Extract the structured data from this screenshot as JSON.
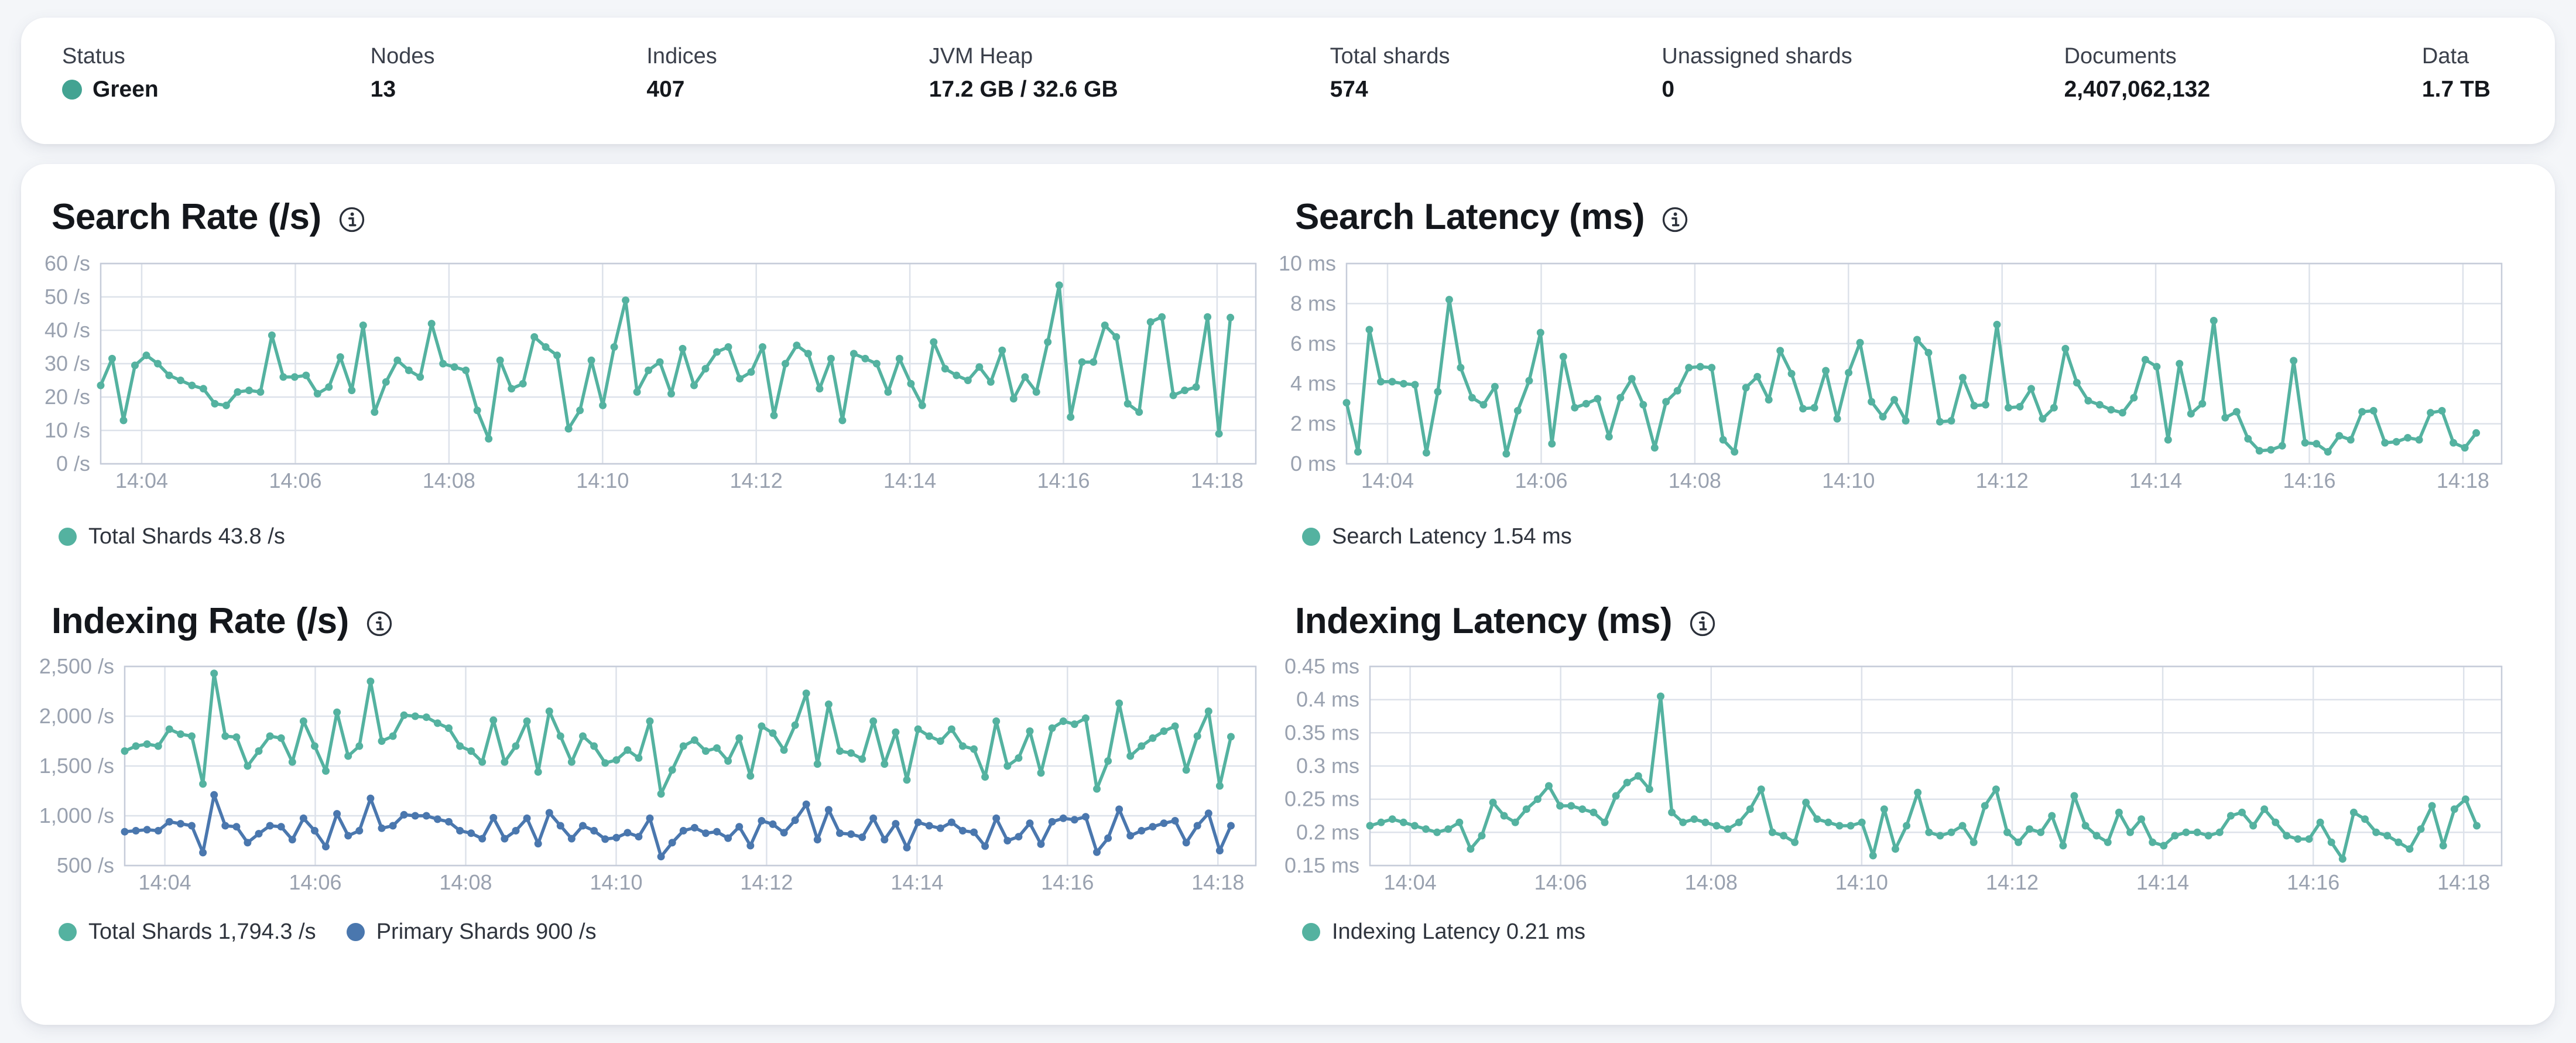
{
  "status_bar": {
    "items": [
      {
        "label": "Status",
        "value": "Green",
        "dot_color": "#43a392"
      },
      {
        "label": "Nodes",
        "value": "13"
      },
      {
        "label": "Indices",
        "value": "407"
      },
      {
        "label": "JVM Heap",
        "value": "17.2 GB / 32.6 GB"
      },
      {
        "label": "Total shards",
        "value": "574"
      },
      {
        "label": "Unassigned shards",
        "value": "0"
      },
      {
        "label": "Documents",
        "value": "2,407,062,132"
      },
      {
        "label": "Data",
        "value": "1.7 TB"
      }
    ]
  },
  "colors": {
    "teal": "#54b2a0",
    "blue": "#4a77ae",
    "grid": "#dde2ea",
    "plot_border": "#c6ccd9",
    "tick_text": "#99a1af"
  },
  "chart_data": [
    {
      "type": "line",
      "title": "Search Rate (/s)",
      "info_icon": "info-in-circle",
      "legend_position": "bottom",
      "grid": true,
      "ylim": [
        0,
        60
      ],
      "y_ticks": [
        0,
        10,
        20,
        30,
        40,
        50,
        60
      ],
      "y_tick_labels": [
        "0 /s",
        "10 /s",
        "20 /s",
        "30 /s",
        "40 /s",
        "50 /s",
        "60 /s"
      ],
      "x_tick_labels": [
        "14:04",
        "14:06",
        "14:08",
        "14:10",
        "14:12",
        "14:14",
        "14:16",
        "14:18"
      ],
      "series": [
        {
          "name": "Total Shards",
          "legend_label": "Total Shards 43.8 /s",
          "current_value": 43.8,
          "unit": "/s",
          "color": "#54b2a0",
          "values": [
            23.5,
            31.5,
            13,
            29.5,
            32.5,
            30,
            26.5,
            25,
            23.5,
            22.5,
            18,
            17.5,
            21.5,
            22,
            21.5,
            38.5,
            26,
            26,
            26.5,
            21,
            23,
            32,
            22,
            41.5,
            15.5,
            24.5,
            31,
            28,
            26,
            42,
            30,
            29,
            28,
            16,
            7.5,
            31,
            22.5,
            24,
            38,
            35,
            32.5,
            10.5,
            16,
            31,
            17.5,
            35,
            49,
            21.5,
            28,
            30.5,
            21,
            34.5,
            23.5,
            28.5,
            33.5,
            35,
            25.5,
            27.5,
            35,
            14.5,
            30,
            35.5,
            33,
            22.5,
            31.5,
            13,
            33,
            31.5,
            30,
            21.5,
            31.5,
            24,
            17.5,
            36.5,
            28.5,
            26.5,
            25,
            29,
            24.5,
            34,
            19.5,
            26,
            21.5,
            36.5,
            53.5,
            14,
            30.5,
            30.5,
            41.5,
            38,
            18,
            15.5,
            42.5,
            44,
            20.5,
            22,
            23,
            44,
            9,
            43.8
          ]
        }
      ]
    },
    {
      "type": "line",
      "title": "Search Latency (ms)",
      "info_icon": "info-in-circle",
      "legend_position": "bottom",
      "grid": true,
      "ylim": [
        0,
        10
      ],
      "y_ticks": [
        0,
        2,
        4,
        6,
        8,
        10
      ],
      "y_tick_labels": [
        "0 ms",
        "2 ms",
        "4 ms",
        "6 ms",
        "8 ms",
        "10 ms"
      ],
      "x_tick_labels": [
        "14:04",
        "14:06",
        "14:08",
        "14:10",
        "14:12",
        "14:14",
        "14:16",
        "14:18"
      ],
      "series": [
        {
          "name": "Search Latency",
          "legend_label": "Search Latency 1.54 ms",
          "current_value": 1.54,
          "unit": "ms",
          "color": "#54b2a0",
          "values": [
            3.05,
            0.6,
            6.7,
            4.1,
            4.1,
            4.0,
            3.95,
            0.55,
            3.6,
            8.2,
            4.8,
            3.3,
            2.95,
            3.85,
            0.5,
            2.65,
            4.15,
            6.55,
            1.0,
            5.35,
            2.8,
            3.0,
            3.25,
            1.35,
            3.3,
            4.25,
            2.95,
            0.8,
            3.1,
            3.65,
            4.8,
            4.85,
            4.8,
            1.2,
            0.6,
            3.8,
            4.35,
            3.2,
            5.65,
            4.5,
            2.75,
            2.8,
            4.65,
            2.25,
            4.55,
            6.05,
            3.1,
            2.35,
            3.2,
            2.15,
            6.2,
            5.55,
            2.1,
            2.15,
            4.3,
            2.9,
            2.95,
            6.95,
            2.8,
            2.85,
            3.75,
            2.25,
            2.8,
            5.75,
            4.05,
            3.15,
            2.95,
            2.7,
            2.55,
            3.3,
            5.2,
            4.85,
            1.2,
            5.0,
            2.5,
            3.0,
            7.15,
            2.3,
            2.6,
            1.25,
            0.65,
            0.7,
            0.9,
            5.15,
            1.05,
            1.0,
            0.6,
            1.4,
            1.2,
            2.6,
            2.65,
            1.05,
            1.1,
            1.3,
            1.2,
            2.55,
            2.65,
            1.05,
            0.8,
            1.54
          ]
        }
      ]
    },
    {
      "type": "line",
      "title": "Indexing Rate (/s)",
      "info_icon": "info-in-circle",
      "legend_position": "bottom",
      "grid": true,
      "ylim": [
        500,
        2500
      ],
      "y_ticks": [
        500,
        1000,
        1500,
        2000,
        2500
      ],
      "y_tick_labels": [
        "500 /s",
        "1,000 /s",
        "1,500 /s",
        "2,000 /s",
        "2,500 /s"
      ],
      "x_tick_labels": [
        "14:04",
        "14:06",
        "14:08",
        "14:10",
        "14:12",
        "14:14",
        "14:16",
        "14:18"
      ],
      "series": [
        {
          "name": "Total Shards",
          "legend_label": "Total Shards 1,794.3 /s",
          "current_value": 1794.3,
          "unit": "/s",
          "color": "#54b2a0",
          "values": [
            1650,
            1700,
            1720,
            1700,
            1870,
            1820,
            1800,
            1320,
            2430,
            1800,
            1790,
            1500,
            1650,
            1800,
            1780,
            1540,
            1950,
            1700,
            1450,
            2040,
            1600,
            1700,
            2350,
            1750,
            1800,
            2010,
            2000,
            1990,
            1930,
            1880,
            1700,
            1650,
            1540,
            1960,
            1540,
            1700,
            1950,
            1440,
            2050,
            1800,
            1540,
            1800,
            1700,
            1530,
            1560,
            1660,
            1580,
            1950,
            1220,
            1460,
            1700,
            1760,
            1650,
            1680,
            1550,
            1780,
            1400,
            1900,
            1830,
            1660,
            1910,
            2230,
            1520,
            2120,
            1650,
            1630,
            1570,
            1950,
            1520,
            1840,
            1360,
            1870,
            1800,
            1750,
            1870,
            1700,
            1670,
            1390,
            1950,
            1500,
            1580,
            1850,
            1430,
            1880,
            1950,
            1920,
            1980,
            1270,
            1550,
            2130,
            1600,
            1700,
            1780,
            1850,
            1900,
            1460,
            1800,
            2050,
            1300,
            1794.3
          ]
        },
        {
          "name": "Primary Shards",
          "legend_label": "Primary Shards 900 /s",
          "current_value": 900,
          "unit": "/s",
          "color": "#4a77ae",
          "values": [
            840,
            850,
            860,
            850,
            940,
            920,
            900,
            630,
            1210,
            900,
            890,
            730,
            820,
            900,
            890,
            760,
            975,
            850,
            690,
            1020,
            800,
            850,
            1175,
            875,
            900,
            1010,
            1000,
            1000,
            965,
            940,
            850,
            825,
            770,
            980,
            770,
            850,
            975,
            720,
            1030,
            900,
            770,
            900,
            850,
            765,
            780,
            830,
            790,
            975,
            590,
            730,
            850,
            880,
            825,
            840,
            775,
            890,
            700,
            950,
            915,
            830,
            955,
            1115,
            760,
            1060,
            825,
            815,
            785,
            975,
            760,
            920,
            680,
            935,
            900,
            875,
            935,
            850,
            835,
            695,
            975,
            750,
            790,
            925,
            715,
            940,
            975,
            960,
            990,
            635,
            775,
            1065,
            800,
            850,
            890,
            925,
            950,
            730,
            900,
            1025,
            650,
            900
          ]
        }
      ]
    },
    {
      "type": "line",
      "title": "Indexing Latency (ms)",
      "info_icon": "info-in-circle",
      "legend_position": "bottom",
      "grid": true,
      "ylim": [
        0.15,
        0.45
      ],
      "y_ticks": [
        0.15,
        0.2,
        0.25,
        0.3,
        0.35,
        0.4,
        0.45
      ],
      "y_tick_labels": [
        "0.15 ms",
        "0.2 ms",
        "0.25 ms",
        "0.3 ms",
        "0.35 ms",
        "0.4 ms",
        "0.45 ms"
      ],
      "x_tick_labels": [
        "14:04",
        "14:06",
        "14:08",
        "14:10",
        "14:12",
        "14:14",
        "14:16",
        "14:18"
      ],
      "series": [
        {
          "name": "Indexing Latency",
          "legend_label": "Indexing Latency 0.21 ms",
          "current_value": 0.21,
          "unit": "ms",
          "color": "#54b2a0",
          "values": [
            0.21,
            0.215,
            0.22,
            0.215,
            0.21,
            0.205,
            0.2,
            0.205,
            0.215,
            0.175,
            0.195,
            0.245,
            0.225,
            0.215,
            0.235,
            0.25,
            0.27,
            0.24,
            0.24,
            0.235,
            0.23,
            0.215,
            0.255,
            0.275,
            0.285,
            0.265,
            0.405,
            0.23,
            0.215,
            0.22,
            0.215,
            0.21,
            0.205,
            0.215,
            0.235,
            0.265,
            0.2,
            0.195,
            0.185,
            0.245,
            0.22,
            0.215,
            0.21,
            0.21,
            0.215,
            0.165,
            0.235,
            0.175,
            0.21,
            0.26,
            0.2,
            0.195,
            0.2,
            0.21,
            0.185,
            0.24,
            0.265,
            0.2,
            0.185,
            0.205,
            0.2,
            0.225,
            0.18,
            0.255,
            0.21,
            0.195,
            0.185,
            0.23,
            0.2,
            0.22,
            0.185,
            0.18,
            0.195,
            0.2,
            0.2,
            0.195,
            0.2,
            0.225,
            0.23,
            0.21,
            0.235,
            0.215,
            0.195,
            0.19,
            0.19,
            0.215,
            0.185,
            0.16,
            0.23,
            0.22,
            0.2,
            0.195,
            0.185,
            0.175,
            0.205,
            0.24,
            0.18,
            0.235,
            0.25,
            0.21
          ]
        }
      ]
    }
  ]
}
